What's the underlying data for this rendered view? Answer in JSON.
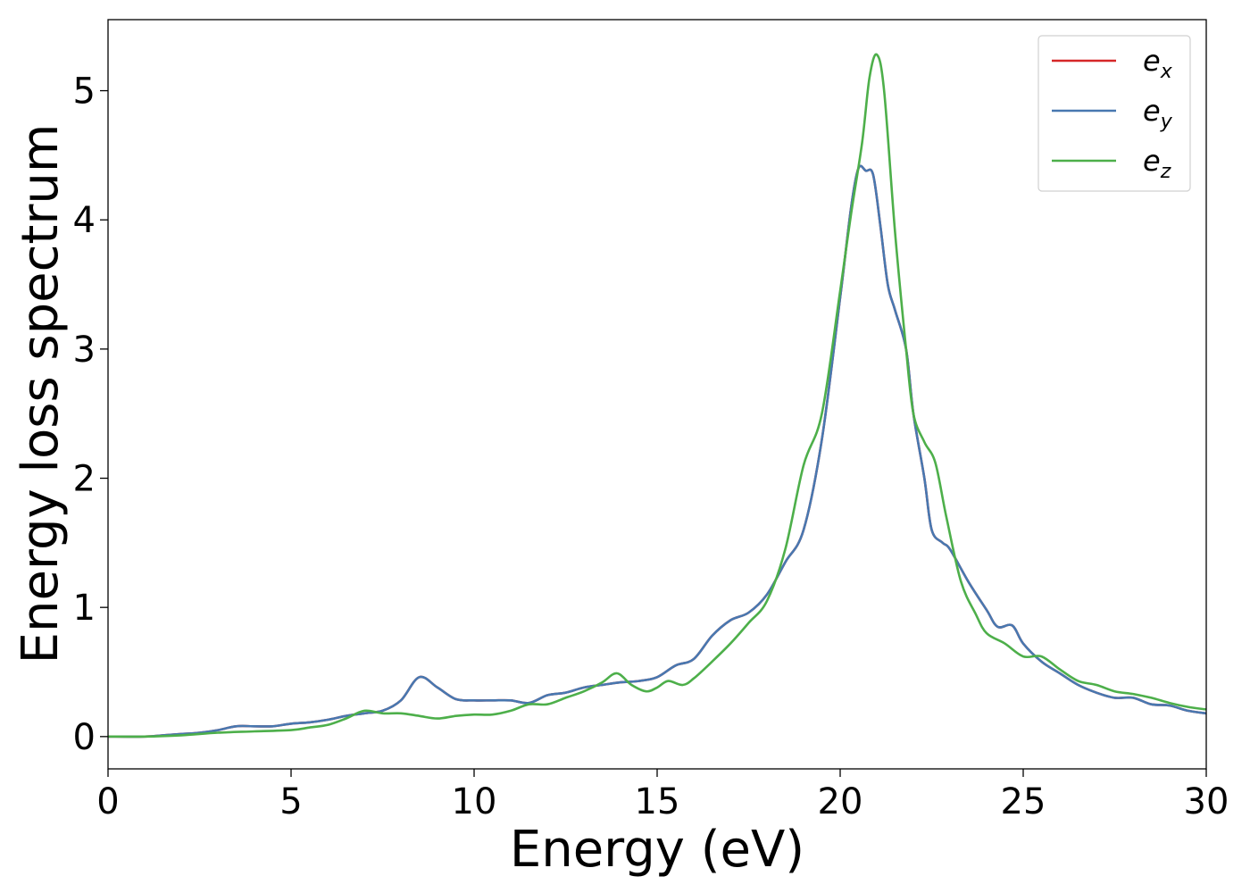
{
  "chart_data": {
    "type": "line",
    "title": "",
    "xlabel": "Energy (eV)",
    "ylabel": "Energy loss spectrum",
    "xlim": [
      0,
      30
    ],
    "ylim": [
      -0.25,
      5.55
    ],
    "xticks": [
      0,
      5,
      10,
      15,
      20,
      25,
      30
    ],
    "yticks": [
      0,
      1,
      2,
      3,
      4,
      5
    ],
    "grid": false,
    "legend_position": "top-right",
    "series": [
      {
        "name": "e",
        "subscript": "x",
        "color": "#d62728",
        "x": [
          0,
          1,
          1.5,
          2,
          2.5,
          3,
          3.5,
          4,
          4.5,
          5,
          5.5,
          6,
          6.5,
          7,
          7.5,
          8,
          8.5,
          9,
          9.5,
          10,
          10.5,
          11,
          11.5,
          12,
          12.5,
          13,
          13.5,
          14,
          14.5,
          15,
          15.5,
          16,
          16.5,
          17,
          17.5,
          18,
          18.5,
          19,
          19.5,
          20,
          20.3,
          20.5,
          20.7,
          20.9,
          21.1,
          21.3,
          21.5,
          21.8,
          22,
          22.3,
          22.5,
          22.8,
          23,
          23.5,
          24,
          24.3,
          24.7,
          25,
          25.5,
          26,
          26.5,
          27,
          27.5,
          28,
          28.5,
          29,
          29.5,
          30
        ],
        "y": [
          0,
          0,
          0.01,
          0.02,
          0.03,
          0.05,
          0.08,
          0.08,
          0.08,
          0.1,
          0.11,
          0.13,
          0.16,
          0.18,
          0.2,
          0.28,
          0.46,
          0.38,
          0.29,
          0.28,
          0.28,
          0.28,
          0.26,
          0.32,
          0.34,
          0.38,
          0.4,
          0.42,
          0.43,
          0.46,
          0.55,
          0.6,
          0.78,
          0.9,
          0.96,
          1.1,
          1.35,
          1.6,
          2.3,
          3.4,
          4.1,
          4.4,
          4.38,
          4.35,
          3.95,
          3.5,
          3.3,
          3.0,
          2.5,
          2.0,
          1.6,
          1.5,
          1.45,
          1.2,
          0.98,
          0.85,
          0.86,
          0.72,
          0.58,
          0.49,
          0.4,
          0.34,
          0.3,
          0.3,
          0.25,
          0.24,
          0.2,
          0.18
        ]
      },
      {
        "name": "e",
        "subscript": "y",
        "color": "#4878b0",
        "x": [
          0,
          1,
          1.5,
          2,
          2.5,
          3,
          3.5,
          4,
          4.5,
          5,
          5.5,
          6,
          6.5,
          7,
          7.5,
          8,
          8.5,
          9,
          9.5,
          10,
          10.5,
          11,
          11.5,
          12,
          12.5,
          13,
          13.5,
          14,
          14.5,
          15,
          15.5,
          16,
          16.5,
          17,
          17.5,
          18,
          18.5,
          19,
          19.5,
          20,
          20.3,
          20.5,
          20.7,
          20.9,
          21.1,
          21.3,
          21.5,
          21.8,
          22,
          22.3,
          22.5,
          22.8,
          23,
          23.5,
          24,
          24.3,
          24.7,
          25,
          25.5,
          26,
          26.5,
          27,
          27.5,
          28,
          28.5,
          29,
          29.5,
          30
        ],
        "y": [
          0,
          0,
          0.01,
          0.02,
          0.03,
          0.05,
          0.08,
          0.08,
          0.08,
          0.1,
          0.11,
          0.13,
          0.16,
          0.18,
          0.2,
          0.28,
          0.46,
          0.38,
          0.29,
          0.28,
          0.28,
          0.28,
          0.26,
          0.32,
          0.34,
          0.38,
          0.4,
          0.42,
          0.43,
          0.46,
          0.55,
          0.6,
          0.78,
          0.9,
          0.96,
          1.1,
          1.35,
          1.6,
          2.3,
          3.4,
          4.1,
          4.4,
          4.38,
          4.35,
          3.95,
          3.5,
          3.3,
          3.0,
          2.5,
          2.0,
          1.6,
          1.5,
          1.45,
          1.2,
          0.98,
          0.85,
          0.86,
          0.72,
          0.58,
          0.49,
          0.4,
          0.34,
          0.3,
          0.3,
          0.25,
          0.24,
          0.2,
          0.18
        ]
      },
      {
        "name": "e",
        "subscript": "z",
        "color": "#4daf4a",
        "x": [
          0,
          1,
          2,
          3,
          4,
          5,
          5.5,
          6,
          6.5,
          7,
          7.5,
          8,
          8.5,
          9,
          9.5,
          10,
          10.5,
          11,
          11.5,
          12,
          12.5,
          13,
          13.5,
          13.9,
          14.3,
          14.7,
          15,
          15.3,
          15.7,
          16,
          16.5,
          17,
          17.5,
          18,
          18.5,
          19,
          19.5,
          20,
          20.3,
          20.6,
          20.8,
          21,
          21.2,
          21.5,
          21.8,
          22,
          22.3,
          22.6,
          22.9,
          23.3,
          23.7,
          24,
          24.5,
          25,
          25.5,
          26,
          26.5,
          27,
          27.5,
          28,
          28.5,
          29,
          29.5,
          30
        ],
        "y": [
          0,
          0,
          0.01,
          0.03,
          0.04,
          0.05,
          0.07,
          0.09,
          0.14,
          0.2,
          0.18,
          0.18,
          0.16,
          0.14,
          0.16,
          0.17,
          0.17,
          0.2,
          0.25,
          0.25,
          0.3,
          0.35,
          0.42,
          0.49,
          0.4,
          0.35,
          0.38,
          0.43,
          0.4,
          0.45,
          0.58,
          0.72,
          0.88,
          1.05,
          1.45,
          2.1,
          2.5,
          3.45,
          4.05,
          4.6,
          5.1,
          5.28,
          5.0,
          3.9,
          3.0,
          2.5,
          2.28,
          2.12,
          1.7,
          1.2,
          0.95,
          0.8,
          0.72,
          0.62,
          0.62,
          0.52,
          0.43,
          0.4,
          0.35,
          0.33,
          0.3,
          0.26,
          0.23,
          0.21
        ]
      }
    ]
  }
}
